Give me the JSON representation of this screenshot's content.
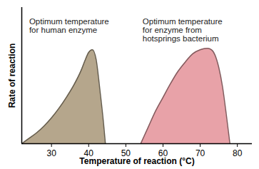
{
  "chart_data": {
    "type": "area",
    "x_label": "Temperature of reaction (°C)",
    "y_label": "Rate of reaction",
    "xlim": [
      22,
      84
    ],
    "xticks": [
      30,
      40,
      50,
      60,
      70,
      80
    ],
    "ylim": [
      0,
      100
    ],
    "yticks": [],
    "tick_labels": "x",
    "grid": false,
    "series": [
      {
        "color": "#b5a68c",
        "x": [
          22,
          24,
          26,
          28,
          30,
          32,
          34,
          36,
          38,
          39,
          40,
          41,
          42,
          43,
          44,
          44.5
        ],
        "values": [
          0,
          4,
          8,
          13,
          19,
          26,
          34,
          43,
          54,
          61,
          67,
          69,
          62,
          40,
          15,
          0
        ]
      },
      {
        "color": "#e8a2a8",
        "x": [
          54,
          56,
          58,
          60,
          62,
          64,
          66,
          68,
          70,
          72,
          73,
          74,
          75,
          76,
          77,
          78
        ],
        "values": [
          0,
          12,
          24,
          34,
          44,
          53,
          60,
          66,
          69,
          70,
          69,
          65,
          56,
          42,
          22,
          0
        ]
      }
    ],
    "annotations": [
      {
        "text": "Optimum temperature\nfor human enzyme",
        "x": 24,
        "y": 92
      },
      {
        "text": "Optimum temperature\nfor enzyme from\nhotsprings bacterium",
        "x": 54.5,
        "y": 92
      }
    ]
  }
}
